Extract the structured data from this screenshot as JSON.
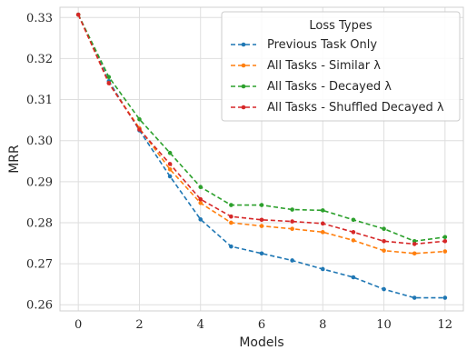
{
  "chart_data": {
    "type": "line",
    "xlabel": "Models",
    "ylabel": "MRR",
    "xlim": [
      -0.6,
      12.6
    ],
    "ylim": [
      0.2585,
      0.3325
    ],
    "xticks": [
      0,
      2,
      4,
      6,
      8,
      10,
      12
    ],
    "yticks": [
      0.26,
      0.27,
      0.28,
      0.29,
      0.3,
      0.31,
      0.32,
      0.33
    ],
    "grid": true,
    "legend": {
      "title": "Loss Types",
      "placement": "top-right"
    },
    "x": [
      0,
      1,
      2,
      3,
      4,
      5,
      6,
      7,
      8,
      9,
      10,
      11,
      12
    ],
    "series": [
      {
        "name": "Previous Task Only",
        "color": "#1f77b4",
        "values": [
          0.3307,
          0.3145,
          0.3025,
          0.2913,
          0.2808,
          0.2742,
          0.2725,
          0.2708,
          0.2687,
          0.2667,
          0.2638,
          0.2617,
          0.2617
        ]
      },
      {
        "name": "All Tasks - Similar λ",
        "color": "#ff7f0e",
        "values": [
          0.3307,
          0.314,
          0.303,
          0.293,
          0.2848,
          0.28,
          0.2792,
          0.2785,
          0.2777,
          0.2757,
          0.2732,
          0.2725,
          0.273
        ]
      },
      {
        "name": "All Tasks - Decayed λ",
        "color": "#2ca02c",
        "values": [
          0.3307,
          0.3155,
          0.3052,
          0.297,
          0.2887,
          0.2843,
          0.2843,
          0.2832,
          0.283,
          0.2807,
          0.2785,
          0.2755,
          0.2765
        ]
      },
      {
        "name": "All Tasks - Shuffled Decayed λ",
        "color": "#d62728",
        "values": [
          0.3307,
          0.314,
          0.3027,
          0.2943,
          0.2857,
          0.2815,
          0.2807,
          0.2803,
          0.2798,
          0.2777,
          0.2755,
          0.2748,
          0.2755
        ]
      }
    ]
  }
}
